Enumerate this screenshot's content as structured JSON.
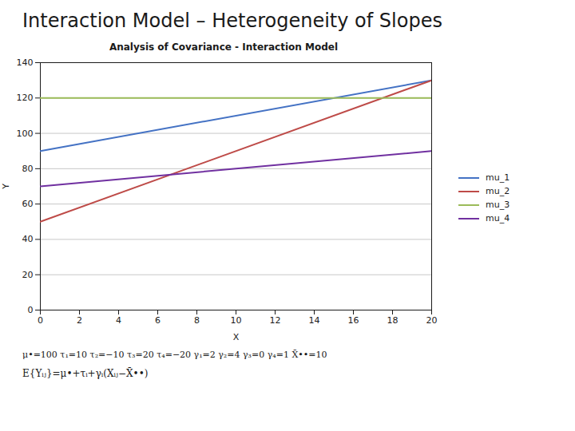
{
  "chart_data": {
    "type": "line",
    "title": "Interaction Model – Heterogeneity of Slopes",
    "subtitle": "Analysis of Covariance - Interaction Model",
    "xlabel": "X",
    "ylabel": "Y",
    "x": [
      0,
      20
    ],
    "series": [
      {
        "name": "mu_1",
        "color": "#4472C4",
        "values": [
          90,
          130
        ]
      },
      {
        "name": "mu_2",
        "color": "#BE4B48",
        "values": [
          50,
          130
        ]
      },
      {
        "name": "mu_3",
        "color": "#9BBB59",
        "values": [
          120,
          120
        ]
      },
      {
        "name": "mu_4",
        "color": "#7030A0",
        "values": [
          70,
          90
        ]
      }
    ],
    "xlim": [
      0,
      20
    ],
    "ylim": [
      0,
      140
    ],
    "xticks": [
      0,
      2,
      4,
      6,
      8,
      10,
      12,
      14,
      16,
      18,
      20
    ],
    "yticks": [
      0,
      20,
      40,
      60,
      80,
      100,
      120,
      140
    ],
    "grid": "y",
    "legend": "right",
    "annotations": [
      "μ•=100   τ₁=10   τ₂=−10   τ₃=20   τ₄=−20   γ₁=2   γ₂=4   γ₃=0   γ₄=1   X̄••=10",
      "E{Yᵢⱼ}=μ•+τᵢ+γᵢ(Xᵢⱼ−X̄••)"
    ]
  }
}
